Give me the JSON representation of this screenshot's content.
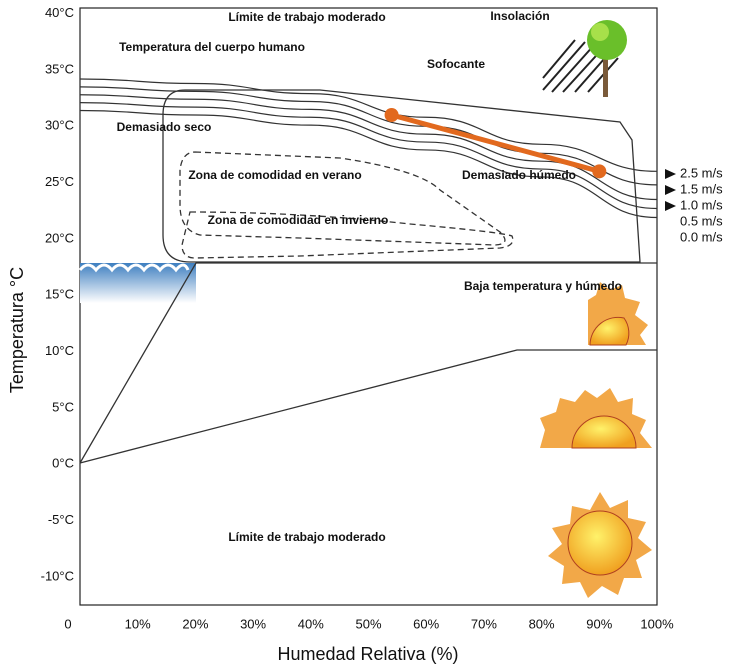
{
  "chart_data": {
    "type": "line",
    "xlabel": "Humedad Relativa (%)",
    "ylabel": "Temperatura °C",
    "xlim": [
      0,
      100
    ],
    "ylim": [
      -12.5,
      40.5
    ],
    "xticks": [
      0,
      {
        "value": 10,
        "label": "10%"
      },
      {
        "value": 20,
        "label": "20%"
      },
      {
        "value": 30,
        "label": "30%"
      },
      {
        "value": 40,
        "label": "40%"
      },
      {
        "value": 50,
        "label": "50%"
      },
      {
        "value": 60,
        "label": "60%"
      },
      {
        "value": 70,
        "label": "70%"
      },
      {
        "value": 80,
        "label": "80%"
      },
      {
        "value": 90,
        "label": "90%"
      },
      {
        "value": 100,
        "label": "100%"
      }
    ],
    "yticks": [
      {
        "value": -10,
        "label": "-10°C"
      },
      {
        "value": -5,
        "label": "-5°C"
      },
      {
        "value": 0,
        "label": "0°C"
      },
      {
        "value": 5,
        "label": "5°C"
      },
      {
        "value": 10,
        "label": "10°C"
      },
      {
        "value": 15,
        "label": "15°C"
      },
      {
        "value": 20,
        "label": "20°C"
      },
      {
        "value": 25,
        "label": "25°C"
      },
      {
        "value": 30,
        "label": "30°C"
      },
      {
        "value": 35,
        "label": "35°C"
      },
      {
        "value": 40,
        "label": "40°C"
      }
    ],
    "grid": false,
    "series": [
      {
        "name": "2.5 m/s",
        "color": "#333333",
        "x": [
          0,
          20,
          40,
          60,
          80,
          100
        ],
        "values": [
          34.2,
          33.8,
          32.9,
          30.8,
          28.4,
          26.0
        ]
      },
      {
        "name": "1.5 m/s",
        "color": "#333333",
        "x": [
          0,
          20,
          40,
          60,
          80,
          100
        ],
        "values": [
          33.5,
          33.1,
          32.2,
          30.0,
          27.6,
          24.8
        ]
      },
      {
        "name": "1.0 m/s",
        "color": "#333333",
        "x": [
          0,
          20,
          40,
          60,
          80,
          100
        ],
        "values": [
          32.8,
          32.4,
          31.5,
          29.3,
          26.9,
          23.5
        ]
      },
      {
        "name": "0.5 m/s",
        "color": "#333333",
        "x": [
          0,
          20,
          40,
          60,
          80,
          100
        ],
        "values": [
          32.1,
          31.7,
          30.8,
          28.6,
          26.2,
          22.7
        ]
      },
      {
        "name": "0.0 m/s",
        "color": "#333333",
        "x": [
          0,
          20,
          40,
          60,
          80,
          100
        ],
        "values": [
          31.4,
          31.0,
          30.1,
          27.9,
          25.5,
          21.9
        ]
      },
      {
        "color": "#e2691e",
        "x": [
          54,
          90
        ],
        "values": [
          31,
          26
        ],
        "markers": true
      }
    ],
    "annotations": [
      "Límite de trabajo moderado",
      "Insolación",
      "Temperatura del cuerpo humano",
      "Sofocante",
      "Demasiado seco",
      "Demasiado húmedo",
      "Zona de comodidad en verano",
      "Zona de comodidad en invierno",
      "Baja temperatura y húmedo",
      "Límite de trabajo moderado"
    ]
  }
}
